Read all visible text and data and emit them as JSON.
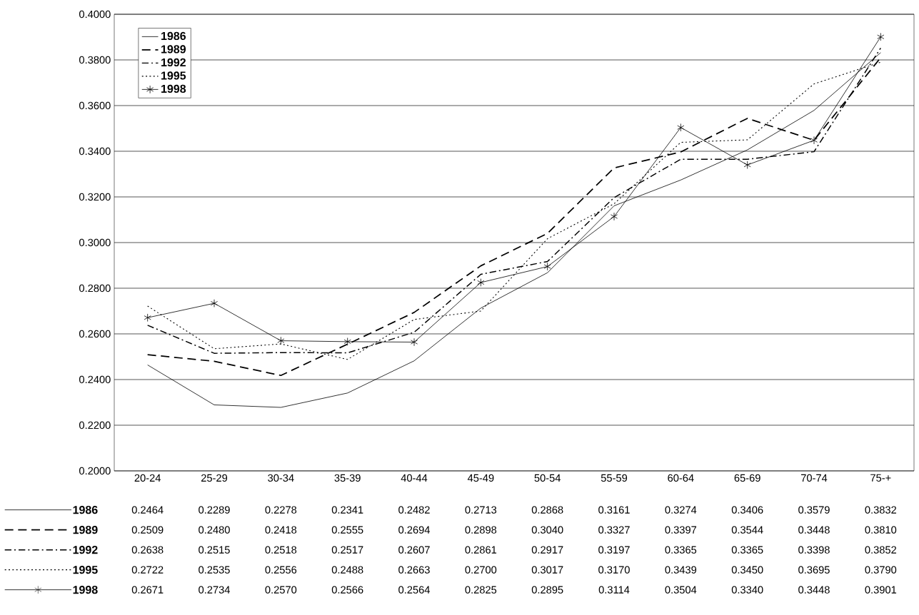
{
  "chart_data": {
    "type": "line",
    "categories": [
      "20-24",
      "25-29",
      "30-34",
      "35-39",
      "40-44",
      "45-49",
      "50-54",
      "55-59",
      "60-64",
      "65-69",
      "70-74",
      "75-+"
    ],
    "ylim": [
      0.2,
      0.4
    ],
    "yticks": [
      {
        "value": 0.2,
        "label": "0.2000"
      },
      {
        "value": 0.22,
        "label": "0.2200"
      },
      {
        "value": 0.24,
        "label": "0.2400"
      },
      {
        "value": 0.26,
        "label": "0.2600"
      },
      {
        "value": 0.28,
        "label": "0.2800"
      },
      {
        "value": 0.3,
        "label": "0.3000"
      },
      {
        "value": 0.32,
        "label": "0.3200"
      },
      {
        "value": 0.34,
        "label": "0.3400"
      },
      {
        "value": 0.36,
        "label": "0.3600"
      },
      {
        "value": 0.38,
        "label": "0.3800"
      },
      {
        "value": 0.4,
        "label": "0.4000"
      }
    ],
    "grid": "y",
    "legend": "top left",
    "series": [
      {
        "name": "1986",
        "color": "#000000",
        "line_style": "solid",
        "marker": "none",
        "values": [
          0.2464,
          0.2289,
          0.2278,
          0.2341,
          0.2482,
          0.2713,
          0.2868,
          0.3161,
          0.3274,
          0.3406,
          0.3579,
          0.3832
        ],
        "value_labels": [
          "0.2464",
          "0.2289",
          "0.2278",
          "0.2341",
          "0.2482",
          "0.2713",
          "0.2868",
          "0.3161",
          "0.3274",
          "0.3406",
          "0.3579",
          "0.3832"
        ]
      },
      {
        "name": "1989",
        "color": "#000000",
        "line_style": "dashed",
        "marker": "none",
        "values": [
          0.2509,
          0.248,
          0.2418,
          0.2555,
          0.2694,
          0.2898,
          0.304,
          0.3327,
          0.3397,
          0.3544,
          0.3448,
          0.381
        ],
        "value_labels": [
          "0.2509",
          "0.2480",
          "0.2418",
          "0.2555",
          "0.2694",
          "0.2898",
          "0.3040",
          "0.3327",
          "0.3397",
          "0.3544",
          "0.3448",
          "0.3810"
        ]
      },
      {
        "name": "1992",
        "color": "#000000",
        "line_style": "dashdot",
        "marker": "none",
        "values": [
          0.2638,
          0.2515,
          0.2518,
          0.2517,
          0.2607,
          0.2861,
          0.2917,
          0.3197,
          0.3365,
          0.3365,
          0.3398,
          0.3852
        ],
        "value_labels": [
          "0.2638",
          "0.2515",
          "0.2518",
          "0.2517",
          "0.2607",
          "0.2861",
          "0.2917",
          "0.3197",
          "0.3365",
          "0.3365",
          "0.3398",
          "0.3852"
        ]
      },
      {
        "name": "1995",
        "color": "#000000",
        "line_style": "dotted",
        "marker": "none",
        "values": [
          0.2722,
          0.2535,
          0.2556,
          0.2488,
          0.2663,
          0.27,
          0.3017,
          0.317,
          0.3439,
          0.345,
          0.3695,
          0.379
        ],
        "value_labels": [
          "0.2722",
          "0.2535",
          "0.2556",
          "0.2488",
          "0.2663",
          "0.2700",
          "0.3017",
          "0.3170",
          "0.3439",
          "0.3450",
          "0.3695",
          "0.3790"
        ]
      },
      {
        "name": "1998",
        "color": "#000000",
        "line_style": "solid",
        "marker": "cross",
        "values": [
          0.2671,
          0.2734,
          0.257,
          0.2566,
          0.2564,
          0.2825,
          0.2895,
          0.3114,
          0.3504,
          0.334,
          0.3448,
          0.3901
        ],
        "value_labels": [
          "0.2671",
          "0.2734",
          "0.2570",
          "0.2566",
          "0.2564",
          "0.2825",
          "0.2895",
          "0.3114",
          "0.3504",
          "0.3340",
          "0.3448",
          "0.3901"
        ]
      }
    ]
  }
}
